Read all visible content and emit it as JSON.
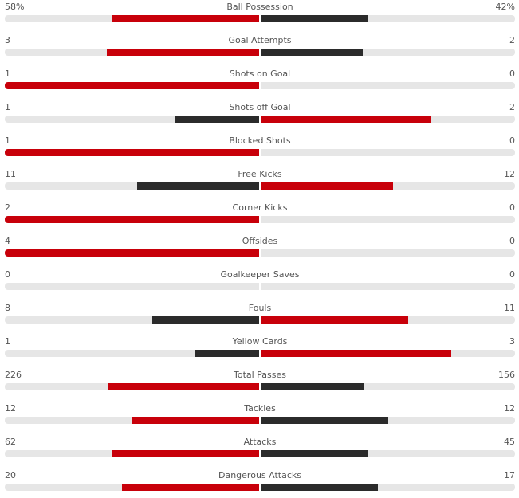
{
  "colors": {
    "leader": "#c8000a",
    "trailer": "#2b2b2b",
    "track": "#e6e6e6"
  },
  "stats": [
    {
      "name": "Ball Possession",
      "home": "58%",
      "away": "42%",
      "home_value": 58,
      "away_value": 42
    },
    {
      "name": "Goal Attempts",
      "home": "3",
      "away": "2",
      "home_value": 3,
      "away_value": 2
    },
    {
      "name": "Shots on Goal",
      "home": "1",
      "away": "0",
      "home_value": 1,
      "away_value": 0
    },
    {
      "name": "Shots off Goal",
      "home": "1",
      "away": "2",
      "home_value": 1,
      "away_value": 2
    },
    {
      "name": "Blocked Shots",
      "home": "1",
      "away": "0",
      "home_value": 1,
      "away_value": 0
    },
    {
      "name": "Free Kicks",
      "home": "11",
      "away": "12",
      "home_value": 11,
      "away_value": 12
    },
    {
      "name": "Corner Kicks",
      "home": "2",
      "away": "0",
      "home_value": 2,
      "away_value": 0
    },
    {
      "name": "Offsides",
      "home": "4",
      "away": "0",
      "home_value": 4,
      "away_value": 0
    },
    {
      "name": "Goalkeeper Saves",
      "home": "0",
      "away": "0",
      "home_value": 0,
      "away_value": 0
    },
    {
      "name": "Fouls",
      "home": "8",
      "away": "11",
      "home_value": 8,
      "away_value": 11
    },
    {
      "name": "Yellow Cards",
      "home": "1",
      "away": "3",
      "home_value": 1,
      "away_value": 3
    },
    {
      "name": "Total Passes",
      "home": "226",
      "away": "156",
      "home_value": 226,
      "away_value": 156
    },
    {
      "name": "Tackles",
      "home": "12",
      "away": "12",
      "home_value": 12,
      "away_value": 12
    },
    {
      "name": "Attacks",
      "home": "62",
      "away": "45",
      "home_value": 62,
      "away_value": 45
    },
    {
      "name": "Dangerous Attacks",
      "home": "20",
      "away": "17",
      "home_value": 20,
      "away_value": 17
    }
  ]
}
